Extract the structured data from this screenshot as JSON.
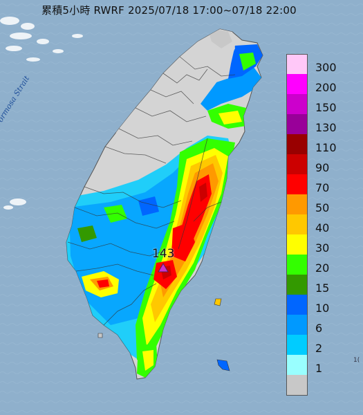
{
  "map": {
    "title": "累積5小時 RWRF 2025/07/18 17:00~07/18 22:00",
    "strait_label": "Formosa Strait",
    "max_value_label": "143",
    "corner_text": "1("
  },
  "legend": {
    "items": [
      {
        "label": "300",
        "color": "#ffc8f8"
      },
      {
        "label": "200",
        "color": "#ff00ff"
      },
      {
        "label": "150",
        "color": "#cc00cc"
      },
      {
        "label": "130",
        "color": "#990099"
      },
      {
        "label": "110",
        "color": "#990000"
      },
      {
        "label": "90",
        "color": "#cc0000"
      },
      {
        "label": "70",
        "color": "#ff0000"
      },
      {
        "label": "50",
        "color": "#ff9900"
      },
      {
        "label": "40",
        "color": "#ffc800"
      },
      {
        "label": "30",
        "color": "#ffff00"
      },
      {
        "label": "20",
        "color": "#33ff00"
      },
      {
        "label": "15",
        "color": "#339900"
      },
      {
        "label": "10",
        "color": "#0066ff"
      },
      {
        "label": "6",
        "color": "#0099ff"
      },
      {
        "label": "2",
        "color": "#00ccff"
      },
      {
        "label": "1",
        "color": "#99ffff"
      },
      {
        "label": "",
        "color": "#c8c8c8"
      }
    ]
  },
  "colors": {
    "sea": "#8fb0cc",
    "land": "#d4d4d4",
    "no_rain": "#c8c8c8",
    "max_marker": "#cc33cc"
  }
}
